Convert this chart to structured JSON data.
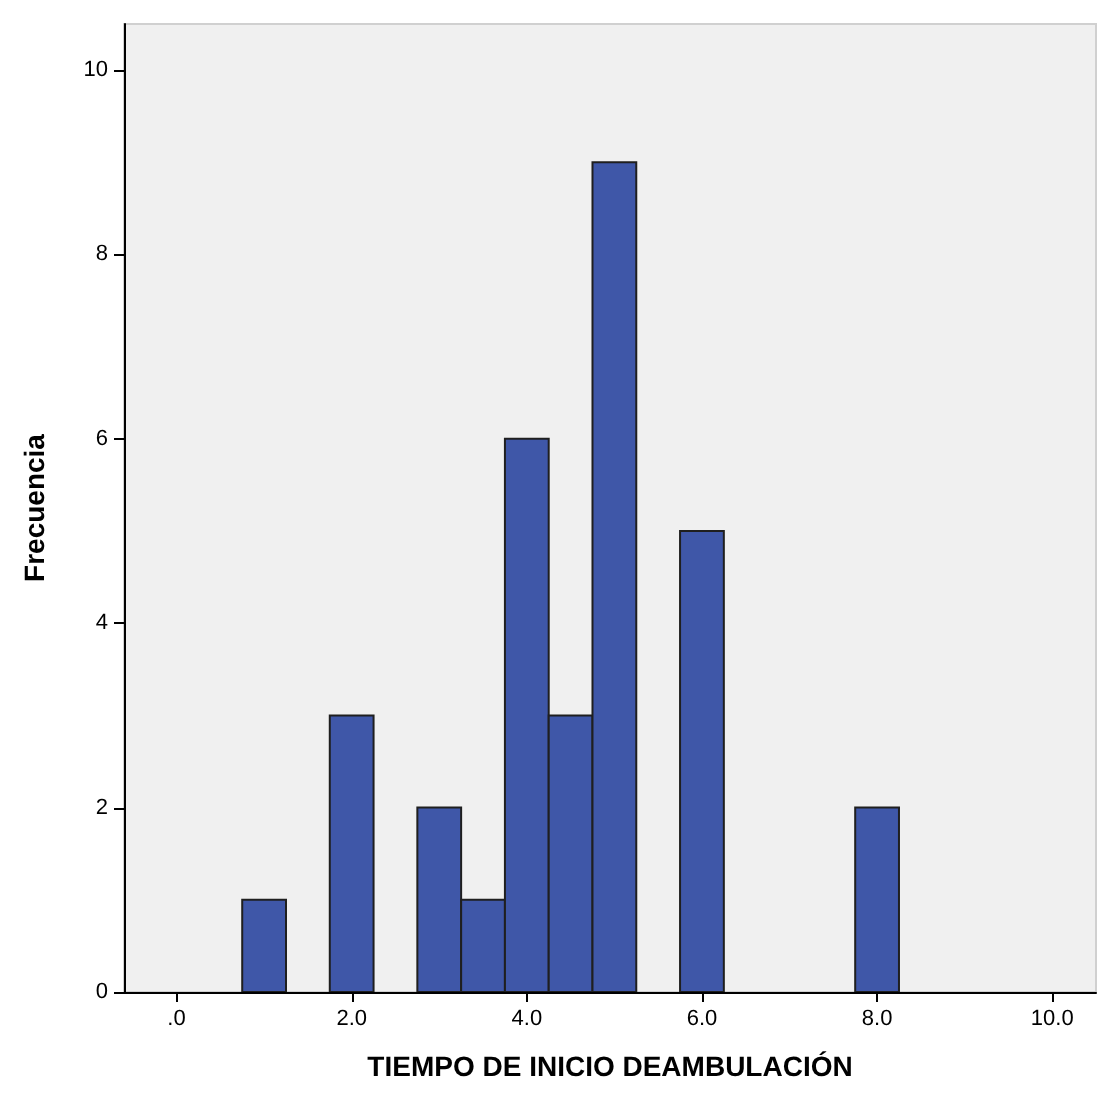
{
  "chart_data": {
    "type": "histogram",
    "xlabel": "TIEMPO DE INICIO DEAMBULACIÓN",
    "ylabel": "Frecuencia",
    "bins": [
      0.75,
      1.25,
      1.75,
      2.25,
      2.75,
      3.25,
      3.75,
      4.25,
      4.75,
      5.25,
      5.75,
      6.25,
      6.75,
      7.25,
      7.75,
      8.25
    ],
    "values": [
      1,
      0,
      3,
      0,
      2,
      1,
      6,
      3,
      9,
      0,
      5,
      0,
      0,
      0,
      2
    ],
    "color": "#3f57a8",
    "xlim": [
      -0.6,
      10.5
    ],
    "xticks": [
      {
        "value": 0,
        "label": ".0"
      },
      {
        "value": 2,
        "label": "2.0"
      },
      {
        "value": 4,
        "label": "4.0"
      },
      {
        "value": 6,
        "label": "6.0"
      },
      {
        "value": 8,
        "label": "8.0"
      },
      {
        "value": 10,
        "label": "10.0"
      }
    ],
    "ylim": [
      0,
      10.5
    ],
    "yticks": [
      0,
      2,
      4,
      6,
      8,
      10
    ],
    "grid": false
  }
}
